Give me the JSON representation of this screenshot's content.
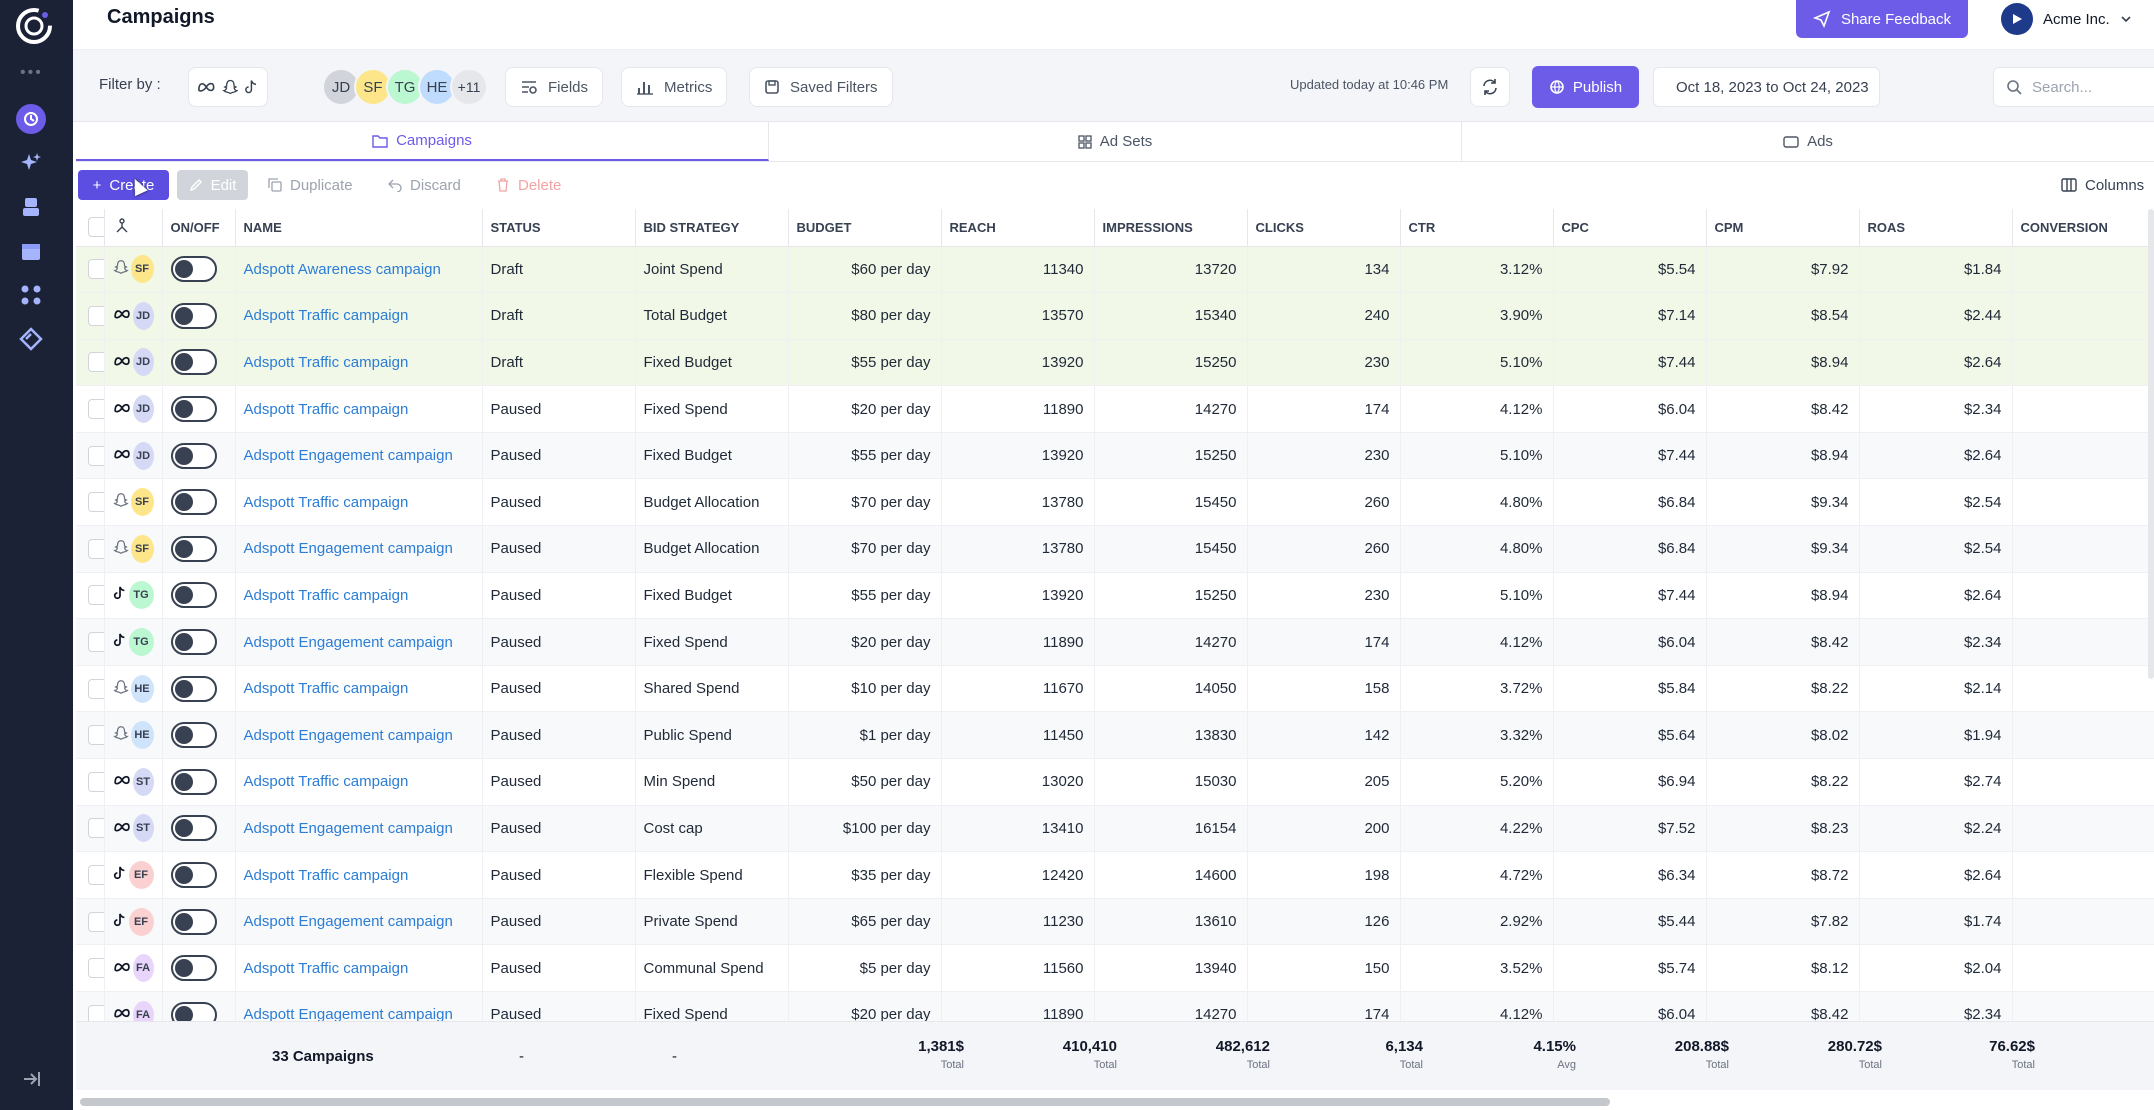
{
  "header": {
    "title": "Campaigns",
    "feedback_label": "Share Feedback",
    "account_name": "Acme Inc."
  },
  "filters": {
    "label": "Filter by :",
    "avatars": [
      {
        "initials": "JD",
        "color": "#d1d5db"
      },
      {
        "initials": "SF",
        "color": "#fde68a"
      },
      {
        "initials": "TG",
        "color": "#bbf7d0"
      },
      {
        "initials": "HE",
        "color": "#bfdbfe"
      },
      {
        "initials": "+11",
        "color": "#e5e7eb"
      }
    ],
    "fields_label": "Fields",
    "metrics_label": "Metrics",
    "saved_label": "Saved Filters",
    "updated_text": "Updated today at 10:46 PM",
    "publish_label": "Publish",
    "date_range": "Oct 18, 2023 to Oct 24, 2023",
    "search_placeholder": "Search..."
  },
  "tabs": {
    "campaigns": "Campaigns",
    "adsets": "Ad Sets",
    "ads": "Ads"
  },
  "actions": {
    "create": "Create",
    "edit": "Edit",
    "duplicate": "Duplicate",
    "discard": "Discard",
    "delete": "Delete",
    "columns": "Columns"
  },
  "columns": [
    "ON/OFF",
    "NAME",
    "STATUS",
    "BID STRATEGY",
    "BUDGET",
    "REACH",
    "IMPRESSIONS",
    "CLICKS",
    "CTR",
    "CPC",
    "CPM",
    "ROAS",
    "CONVERSION"
  ],
  "rows": [
    {
      "platform": "snapchat",
      "owner": "SF",
      "name": "Adspott Awareness campaign",
      "status": "Draft",
      "bid": "Joint Spend",
      "budget": "$60 per day",
      "reach": "11340",
      "impressions": "13720",
      "clicks": "134",
      "ctr": "3.12%",
      "cpc": "$5.54",
      "cpm": "$7.92",
      "roas": "$1.84"
    },
    {
      "platform": "meta",
      "owner": "JD",
      "name": "Adspott Traffic campaign",
      "status": "Draft",
      "bid": "Total Budget",
      "budget": "$80 per day",
      "reach": "13570",
      "impressions": "15340",
      "clicks": "240",
      "ctr": "3.90%",
      "cpc": "$7.14",
      "cpm": "$8.54",
      "roas": "$2.44"
    },
    {
      "platform": "meta",
      "owner": "JD",
      "name": "Adspott Traffic campaign",
      "status": "Draft",
      "bid": "Fixed Budget",
      "budget": "$55 per day",
      "reach": "13920",
      "impressions": "15250",
      "clicks": "230",
      "ctr": "5.10%",
      "cpc": "$7.44",
      "cpm": "$8.94",
      "roas": "$2.64"
    },
    {
      "platform": "meta",
      "owner": "JD",
      "name": "Adspott Traffic campaign",
      "status": "Paused",
      "bid": "Fixed Spend",
      "budget": "$20 per day",
      "reach": "11890",
      "impressions": "14270",
      "clicks": "174",
      "ctr": "4.12%",
      "cpc": "$6.04",
      "cpm": "$8.42",
      "roas": "$2.34"
    },
    {
      "platform": "meta",
      "owner": "JD",
      "name": "Adspott Engagement campaign",
      "status": "Paused",
      "bid": "Fixed Budget",
      "budget": "$55 per day",
      "reach": "13920",
      "impressions": "15250",
      "clicks": "230",
      "ctr": "5.10%",
      "cpc": "$7.44",
      "cpm": "$8.94",
      "roas": "$2.64"
    },
    {
      "platform": "snapchat",
      "owner": "SF",
      "name": "Adspott Traffic campaign",
      "status": "Paused",
      "bid": "Budget Allocation",
      "budget": "$70 per day",
      "reach": "13780",
      "impressions": "15450",
      "clicks": "260",
      "ctr": "4.80%",
      "cpc": "$6.84",
      "cpm": "$9.34",
      "roas": "$2.54"
    },
    {
      "platform": "snapchat",
      "owner": "SF",
      "name": "Adspott Engagement campaign",
      "status": "Paused",
      "bid": "Budget Allocation",
      "budget": "$70 per day",
      "reach": "13780",
      "impressions": "15450",
      "clicks": "260",
      "ctr": "4.80%",
      "cpc": "$6.84",
      "cpm": "$9.34",
      "roas": "$2.54"
    },
    {
      "platform": "tiktok",
      "owner": "TG",
      "name": "Adspott Traffic campaign",
      "status": "Paused",
      "bid": "Fixed Budget",
      "budget": "$55 per day",
      "reach": "13920",
      "impressions": "15250",
      "clicks": "230",
      "ctr": "5.10%",
      "cpc": "$7.44",
      "cpm": "$8.94",
      "roas": "$2.64"
    },
    {
      "platform": "tiktok",
      "owner": "TG",
      "name": "Adspott Engagement campaign",
      "status": "Paused",
      "bid": "Fixed Spend",
      "budget": "$20 per day",
      "reach": "11890",
      "impressions": "14270",
      "clicks": "174",
      "ctr": "4.12%",
      "cpc": "$6.04",
      "cpm": "$8.42",
      "roas": "$2.34"
    },
    {
      "platform": "snapchat",
      "owner": "HE",
      "name": "Adspott Traffic campaign",
      "status": "Paused",
      "bid": "Shared Spend",
      "budget": "$10 per day",
      "reach": "11670",
      "impressions": "14050",
      "clicks": "158",
      "ctr": "3.72%",
      "cpc": "$5.84",
      "cpm": "$8.22",
      "roas": "$2.14"
    },
    {
      "platform": "snapchat",
      "owner": "HE",
      "name": "Adspott Engagement campaign",
      "status": "Paused",
      "bid": "Public Spend",
      "budget": "$1 per day",
      "reach": "11450",
      "impressions": "13830",
      "clicks": "142",
      "ctr": "3.32%",
      "cpc": "$5.64",
      "cpm": "$8.02",
      "roas": "$1.94"
    },
    {
      "platform": "meta",
      "owner": "ST",
      "name": "Adspott Traffic campaign",
      "status": "Paused",
      "bid": "Min Spend",
      "budget": "$50 per day",
      "reach": "13020",
      "impressions": "15030",
      "clicks": "205",
      "ctr": "5.20%",
      "cpc": "$6.94",
      "cpm": "$8.22",
      "roas": "$2.74"
    },
    {
      "platform": "meta",
      "owner": "ST",
      "name": "Adspott Engagement campaign",
      "status": "Paused",
      "bid": "Cost cap",
      "budget": "$100 per day",
      "reach": "13410",
      "impressions": "16154",
      "clicks": "200",
      "ctr": "4.22%",
      "cpc": "$7.52",
      "cpm": "$8.23",
      "roas": "$2.24"
    },
    {
      "platform": "tiktok",
      "owner": "EF",
      "name": "Adspott Traffic campaign",
      "status": "Paused",
      "bid": "Flexible Spend",
      "budget": "$35 per day",
      "reach": "12420",
      "impressions": "14600",
      "clicks": "198",
      "ctr": "4.72%",
      "cpc": "$6.34",
      "cpm": "$8.72",
      "roas": "$2.64"
    },
    {
      "platform": "tiktok",
      "owner": "EF",
      "name": "Adspott Engagement campaign",
      "status": "Paused",
      "bid": "Private Spend",
      "budget": "$65 per day",
      "reach": "11230",
      "impressions": "13610",
      "clicks": "126",
      "ctr": "2.92%",
      "cpc": "$5.44",
      "cpm": "$7.82",
      "roas": "$1.74"
    },
    {
      "platform": "meta",
      "owner": "FA",
      "name": "Adspott Traffic campaign",
      "status": "Paused",
      "bid": "Communal Spend",
      "budget": "$5 per day",
      "reach": "11560",
      "impressions": "13940",
      "clicks": "150",
      "ctr": "3.52%",
      "cpc": "$5.74",
      "cpm": "$8.12",
      "roas": "$2.04"
    },
    {
      "platform": "meta",
      "owner": "FA",
      "name": "Adspott Engagement campaign",
      "status": "Paused",
      "bid": "Fixed Spend",
      "budget": "$20 per day",
      "reach": "11890",
      "impressions": "14270",
      "clicks": "174",
      "ctr": "4.12%",
      "cpc": "$6.04",
      "cpm": "$8.42",
      "roas": "$2.34"
    }
  ],
  "owner_colors": {
    "SF": "#fde68a",
    "JD": "#d6d9f5",
    "TG": "#bbf7d0",
    "HE": "#cfe3fb",
    "ST": "#d6d9f5",
    "EF": "#fbd0d0",
    "FA": "#e9d5fb"
  },
  "totals": {
    "count": "33 Campaigns",
    "status": "-",
    "bid": "-",
    "budget": {
      "value": "1,381$",
      "label": "Total"
    },
    "reach": {
      "value": "410,410",
      "label": "Total"
    },
    "impressions": {
      "value": "482,612",
      "label": "Total"
    },
    "clicks": {
      "value": "6,134",
      "label": "Total"
    },
    "ctr": {
      "value": "4.15%",
      "label": "Avg"
    },
    "cpc": {
      "value": "208.88$",
      "label": "Total"
    },
    "cpm": {
      "value": "280.72$",
      "label": "Total"
    },
    "roas": {
      "value": "76.62$",
      "label": "Total"
    }
  }
}
